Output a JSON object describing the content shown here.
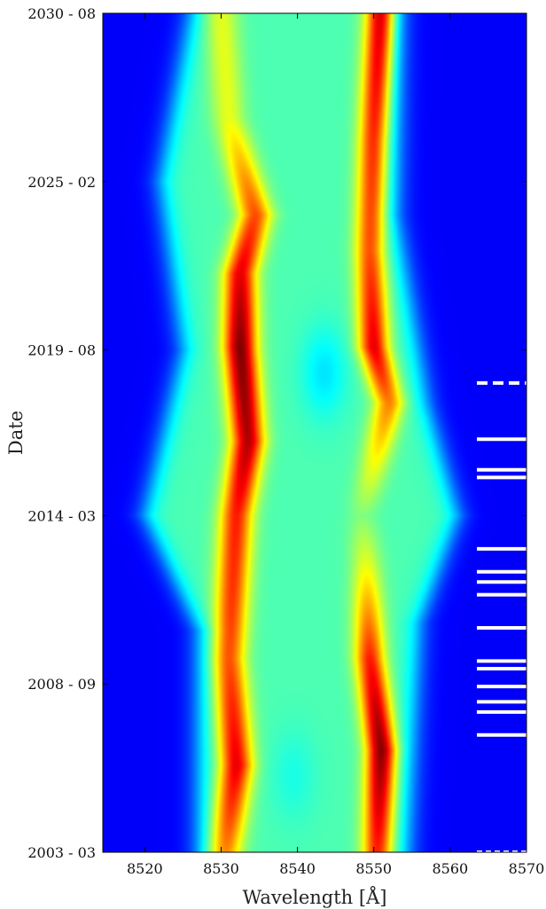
{
  "chart_data": {
    "type": "heatmap",
    "title": "",
    "xlabel": "Wavelength [Å]",
    "ylabel": "Date",
    "xlim": [
      8514.5,
      8570
    ],
    "x_ticks": [
      8520,
      8530,
      8540,
      8550,
      8560,
      8570
    ],
    "x_tick_labels": [
      "8520",
      "8530",
      "8540",
      "8550",
      "8560",
      "8570"
    ],
    "ylim": [
      "2003-03",
      "2030-08"
    ],
    "y_ticks": [
      "2003-03",
      "2008-09",
      "2014-03",
      "2019-08",
      "2025-02",
      "2030-08"
    ],
    "y_tick_labels": [
      "2003 - 03",
      "2008 - 09",
      "2014 - 03",
      "2019 - 08",
      "2025 - 02",
      "2030 - 08"
    ],
    "colormap": "jet",
    "background_color": "#00008f",
    "intensity_features": [
      {
        "name": "blue_edge",
        "points": [
          {
            "date": "2003-03",
            "wavelength": 8527
          },
          {
            "date": "2010-06",
            "wavelength": 8527
          },
          {
            "date": "2014-03",
            "wavelength": 8520
          },
          {
            "date": "2019-08",
            "wavelength": 8525
          },
          {
            "date": "2025-02",
            "wavelength": 8522
          },
          {
            "date": "2030-08",
            "wavelength": 8526
          }
        ]
      },
      {
        "name": "peak_blue",
        "points": [
          {
            "date": "2003-03",
            "wavelength": 8530.5,
            "level": 0.75
          },
          {
            "date": "2006-01",
            "wavelength": 8532,
            "level": 0.9
          },
          {
            "date": "2009-07",
            "wavelength": 8531,
            "level": 0.8
          },
          {
            "date": "2014-03",
            "wavelength": 8532,
            "level": 0.85
          },
          {
            "date": "2016-08",
            "wavelength": 8533.5,
            "level": 0.95
          },
          {
            "date": "2019-09",
            "wavelength": 8532.5,
            "level": 1.0
          },
          {
            "date": "2022-02",
            "wavelength": 8532.5,
            "level": 0.9
          },
          {
            "date": "2024-01",
            "wavelength": 8534.5,
            "level": 0.8
          },
          {
            "date": "2027-03",
            "wavelength": 8531,
            "level": 0.6
          },
          {
            "date": "2030-08",
            "wavelength": 8530,
            "level": 0.6
          }
        ]
      },
      {
        "name": "peak_red",
        "points": [
          {
            "date": "2003-03",
            "wavelength": 8550.5,
            "level": 0.85
          },
          {
            "date": "2006-07",
            "wavelength": 8551,
            "level": 1.0
          },
          {
            "date": "2009-07",
            "wavelength": 8549.5,
            "level": 0.85
          },
          {
            "date": "2012-08",
            "wavelength": 8549,
            "level": 0.6
          },
          {
            "date": "2014-03",
            "wavelength": 8548.5,
            "level": 0.5
          },
          {
            "date": "2017-11",
            "wavelength": 8552,
            "level": 0.75
          },
          {
            "date": "2019-09",
            "wavelength": 8550,
            "level": 0.9
          },
          {
            "date": "2022-11",
            "wavelength": 8549.5,
            "level": 0.8
          },
          {
            "date": "2026-06",
            "wavelength": 8550,
            "level": 0.85
          },
          {
            "date": "2030-08",
            "wavelength": 8551,
            "level": 0.95
          }
        ]
      },
      {
        "name": "red_edge",
        "points": [
          {
            "date": "2003-03",
            "wavelength": 8554.5
          },
          {
            "date": "2010-09",
            "wavelength": 8556
          },
          {
            "date": "2014-03",
            "wavelength": 8561
          },
          {
            "date": "2017-11",
            "wavelength": 8557
          },
          {
            "date": "2024-01",
            "wavelength": 8553
          },
          {
            "date": "2030-08",
            "wavelength": 8553.5
          }
        ]
      }
    ],
    "dips": [
      {
        "date": "2018-11",
        "wavelength": 8543.5,
        "level": 0.35
      },
      {
        "date": "2005-09",
        "wavelength": 8539.5,
        "level": 0.4
      }
    ],
    "observation_marks": [
      {
        "date": "2003-03",
        "style": "dotted"
      },
      {
        "date": "2007-01",
        "style": "solid"
      },
      {
        "date": "2007-10",
        "style": "solid"
      },
      {
        "date": "2008-02",
        "style": "solid"
      },
      {
        "date": "2008-08",
        "style": "solid"
      },
      {
        "date": "2009-03",
        "style": "solid"
      },
      {
        "date": "2009-06",
        "style": "solid"
      },
      {
        "date": "2010-07",
        "style": "solid"
      },
      {
        "date": "2011-08",
        "style": "solid"
      },
      {
        "date": "2012-01",
        "style": "solid"
      },
      {
        "date": "2012-05",
        "style": "solid"
      },
      {
        "date": "2013-02",
        "style": "solid"
      },
      {
        "date": "2015-06",
        "style": "solid"
      },
      {
        "date": "2015-09",
        "style": "solid"
      },
      {
        "date": "2016-09",
        "style": "solid"
      },
      {
        "date": "2018-07",
        "style": "dashed"
      }
    ],
    "observation_marks_range": [
      8563.5,
      8570
    ]
  }
}
